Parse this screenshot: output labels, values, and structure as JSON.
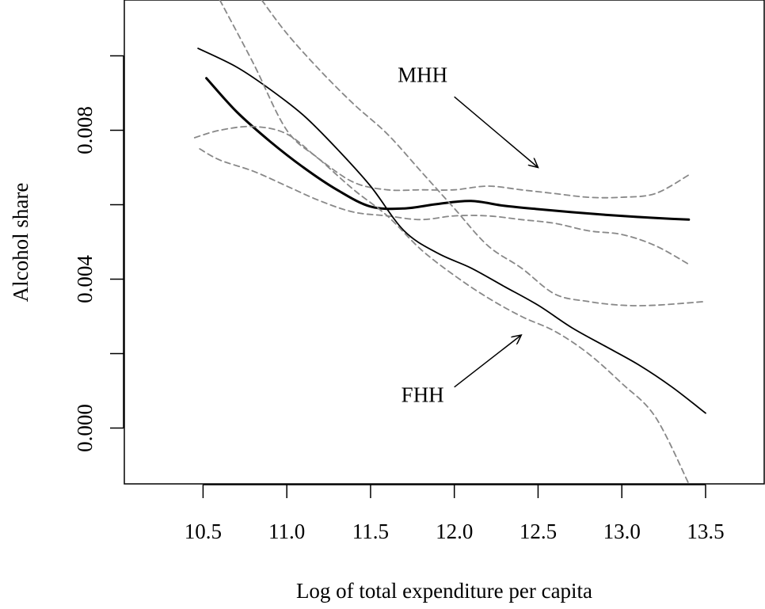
{
  "chart_data": {
    "type": "line",
    "title": "",
    "xlabel": "Log of total expenditure per capita",
    "ylabel": "Alcohol share",
    "xlim": [
      10.03,
      13.85
    ],
    "ylim": [
      -0.0015,
      0.0115
    ],
    "x_ticks": [
      10.5,
      11.0,
      11.5,
      12.0,
      12.5,
      13.0,
      13.5
    ],
    "x_tick_labels": [
      "10.5",
      "11.0",
      "11.5",
      "12.0",
      "12.5",
      "13.0",
      "13.5"
    ],
    "y_ticks": [
      0.0,
      0.002,
      0.004,
      0.006,
      0.008,
      0.01
    ],
    "y_tick_labels": [
      "0.000",
      "0.004",
      "0.008"
    ],
    "y_tick_labeled_values": [
      0.0,
      0.004,
      0.008
    ],
    "grid": false,
    "legend": "none",
    "annotations": [
      {
        "text": "MHH",
        "x": 12.0,
        "y": 0.0093,
        "arrow_from": [
          12.0,
          0.0089
        ],
        "arrow_to": [
          12.5,
          0.007
        ]
      },
      {
        "text": "FHH",
        "x": 12.0,
        "y": 0.0007,
        "arrow_from": [
          12.0,
          0.0011
        ],
        "arrow_to": [
          12.4,
          0.0025
        ]
      }
    ],
    "series": [
      {
        "id": "mhh",
        "style": "solid-thick",
        "color": "#000000",
        "x": [
          10.52,
          10.7,
          10.9,
          11.1,
          11.3,
          11.5,
          11.7,
          11.9,
          12.1,
          12.3,
          12.5,
          12.7,
          12.9,
          13.1,
          13.3,
          13.4
        ],
        "y": [
          0.0094,
          0.0085,
          0.0077,
          0.007,
          0.0064,
          0.00595,
          0.0059,
          0.00602,
          0.0061,
          0.00597,
          0.00588,
          0.0058,
          0.00573,
          0.00567,
          0.00562,
          0.0056
        ]
      },
      {
        "id": "mhh-ci-upper",
        "style": "dashed",
        "color": "#888888",
        "x": [
          10.45,
          10.6,
          10.8,
          11.0,
          11.2,
          11.4,
          11.6,
          11.8,
          12.0,
          12.2,
          12.4,
          12.6,
          12.8,
          13.0,
          13.2,
          13.4
        ],
        "y": [
          0.0078,
          0.008,
          0.0081,
          0.0079,
          0.0072,
          0.0066,
          0.0064,
          0.0064,
          0.0064,
          0.0065,
          0.0064,
          0.0063,
          0.0062,
          0.0062,
          0.0063,
          0.0068
        ]
      },
      {
        "id": "mhh-ci-lower",
        "style": "dashed",
        "color": "#888888",
        "x": [
          10.48,
          10.6,
          10.8,
          11.0,
          11.2,
          11.4,
          11.6,
          11.8,
          12.0,
          12.2,
          12.4,
          12.6,
          12.8,
          13.0,
          13.2,
          13.4
        ],
        "y": [
          0.0075,
          0.0072,
          0.0069,
          0.0065,
          0.0061,
          0.0058,
          0.0057,
          0.0056,
          0.0057,
          0.0057,
          0.0056,
          0.0055,
          0.0053,
          0.0052,
          0.0049,
          0.0044
        ]
      },
      {
        "id": "fhh",
        "style": "solid-thin",
        "color": "#000000",
        "x": [
          10.47,
          10.7,
          10.9,
          11.1,
          11.3,
          11.5,
          11.7,
          11.9,
          12.1,
          12.3,
          12.5,
          12.7,
          12.9,
          13.1,
          13.3,
          13.5
        ],
        "y": [
          0.0102,
          0.0097,
          0.0091,
          0.0084,
          0.0075,
          0.0065,
          0.0053,
          0.0047,
          0.0043,
          0.0038,
          0.0033,
          0.0027,
          0.0022,
          0.0017,
          0.0011,
          0.0004
        ]
      },
      {
        "id": "fhh-ci-upper",
        "style": "dashed",
        "color": "#888888",
        "x": [
          10.85,
          11.0,
          11.2,
          11.4,
          11.6,
          11.8,
          12.0,
          12.2,
          12.4,
          12.6,
          12.8,
          13.0,
          13.2,
          13.5
        ],
        "y": [
          0.0115,
          0.0106,
          0.0096,
          0.0087,
          0.0079,
          0.0069,
          0.0059,
          0.0049,
          0.0043,
          0.0036,
          0.0034,
          0.0033,
          0.0033,
          0.0034
        ]
      },
      {
        "id": "fhh-ci-lower",
        "style": "dashed",
        "color": "#888888",
        "x": [
          10.6,
          10.8,
          11.0,
          11.2,
          11.4,
          11.6,
          11.8,
          12.0,
          12.2,
          12.4,
          12.6,
          12.8,
          13.0,
          13.2,
          13.4
        ],
        "y": [
          0.0115,
          0.0098,
          0.008,
          0.0072,
          0.0064,
          0.0057,
          0.0048,
          0.0041,
          0.0035,
          0.003,
          0.0026,
          0.002,
          0.0012,
          0.0003,
          -0.0015
        ]
      }
    ]
  }
}
